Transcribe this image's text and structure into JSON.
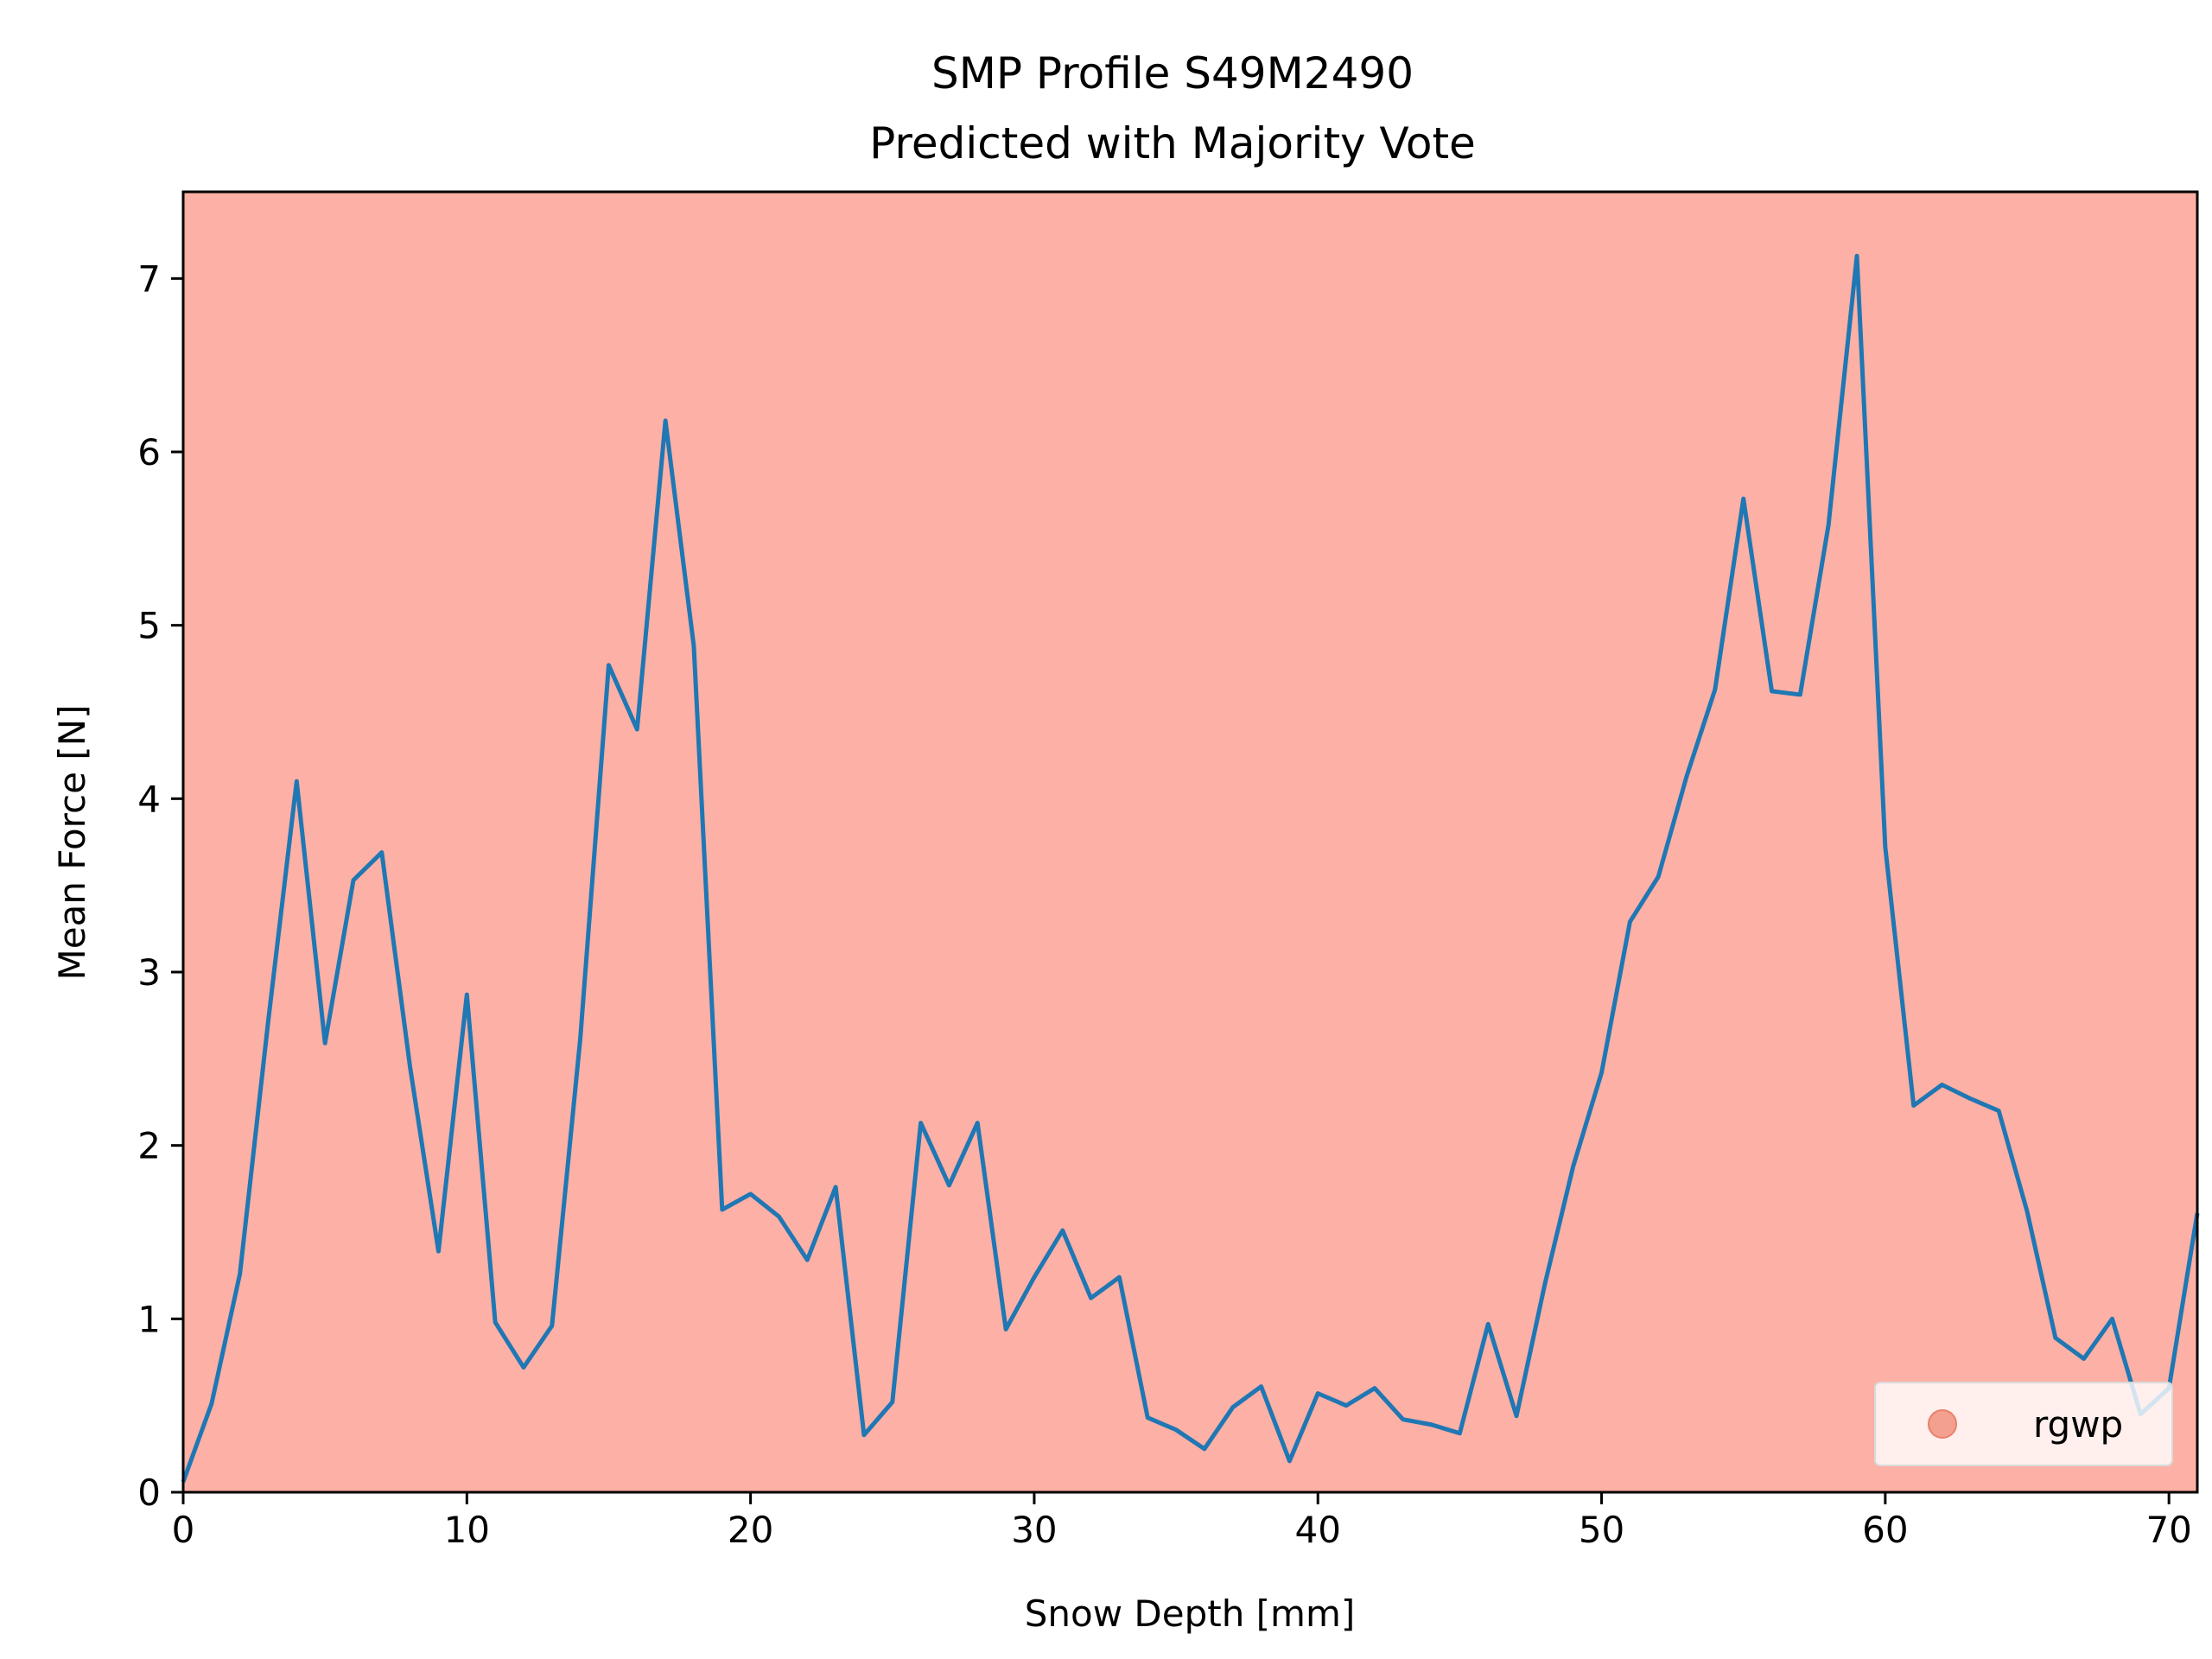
{
  "chart_data": {
    "type": "line",
    "title": "SMP Profile S49M2490",
    "subtitle": "Predicted with Majority Vote",
    "xlabel": "Snow Depth [mm]",
    "ylabel": "Mean Force [N]",
    "xlim": [
      0,
      71
    ],
    "ylim": [
      0,
      7.5
    ],
    "xticks": [
      0,
      10,
      20,
      30,
      40,
      50,
      60,
      70
    ],
    "yticks": [
      0,
      1,
      2,
      3,
      4,
      5,
      6,
      7
    ],
    "grid": false,
    "background_color": "#fdb0a5",
    "line_color": "#1f77b4",
    "legend": {
      "placement": "lower-right",
      "entries": [
        {
          "label": "rgwp",
          "marker": "circle",
          "color": "#f4a08f"
        }
      ]
    },
    "series": [
      {
        "x": [
          0,
          1,
          2,
          3,
          4,
          5,
          6,
          7,
          8,
          9,
          10,
          11,
          12,
          13,
          14,
          15,
          16,
          17,
          18,
          19,
          20,
          21,
          22,
          23,
          24,
          25,
          26,
          27,
          28,
          29,
          30,
          31,
          32,
          33,
          34,
          35,
          36,
          37,
          38,
          39,
          40,
          41,
          42,
          43,
          44,
          45,
          46,
          47,
          48,
          49,
          50,
          51,
          52,
          53,
          54,
          55,
          56,
          57,
          58,
          59,
          60,
          61,
          62,
          63,
          64,
          65,
          66,
          67,
          68,
          69,
          70,
          71
        ],
        "y": [
          0.06,
          0.51,
          1.26,
          2.72,
          4.1,
          2.59,
          3.53,
          3.69,
          2.45,
          1.39,
          2.87,
          0.98,
          0.72,
          0.96,
          2.62,
          4.77,
          4.4,
          6.18,
          4.88,
          1.63,
          1.72,
          1.59,
          1.34,
          1.76,
          0.33,
          0.52,
          2.13,
          1.77,
          2.13,
          0.94,
          1.24,
          1.51,
          1.12,
          1.24,
          0.43,
          0.36,
          0.25,
          0.49,
          0.61,
          0.18,
          0.57,
          0.5,
          0.6,
          0.42,
          0.39,
          0.34,
          0.97,
          0.44,
          1.2,
          1.88,
          2.42,
          3.29,
          3.55,
          4.13,
          4.63,
          5.73,
          4.62,
          4.6,
          5.58,
          7.13,
          3.72,
          2.23,
          2.35,
          2.27,
          2.2,
          1.62,
          0.89,
          0.77,
          1.0,
          0.45,
          0.6,
          1.61
        ]
      }
    ]
  }
}
